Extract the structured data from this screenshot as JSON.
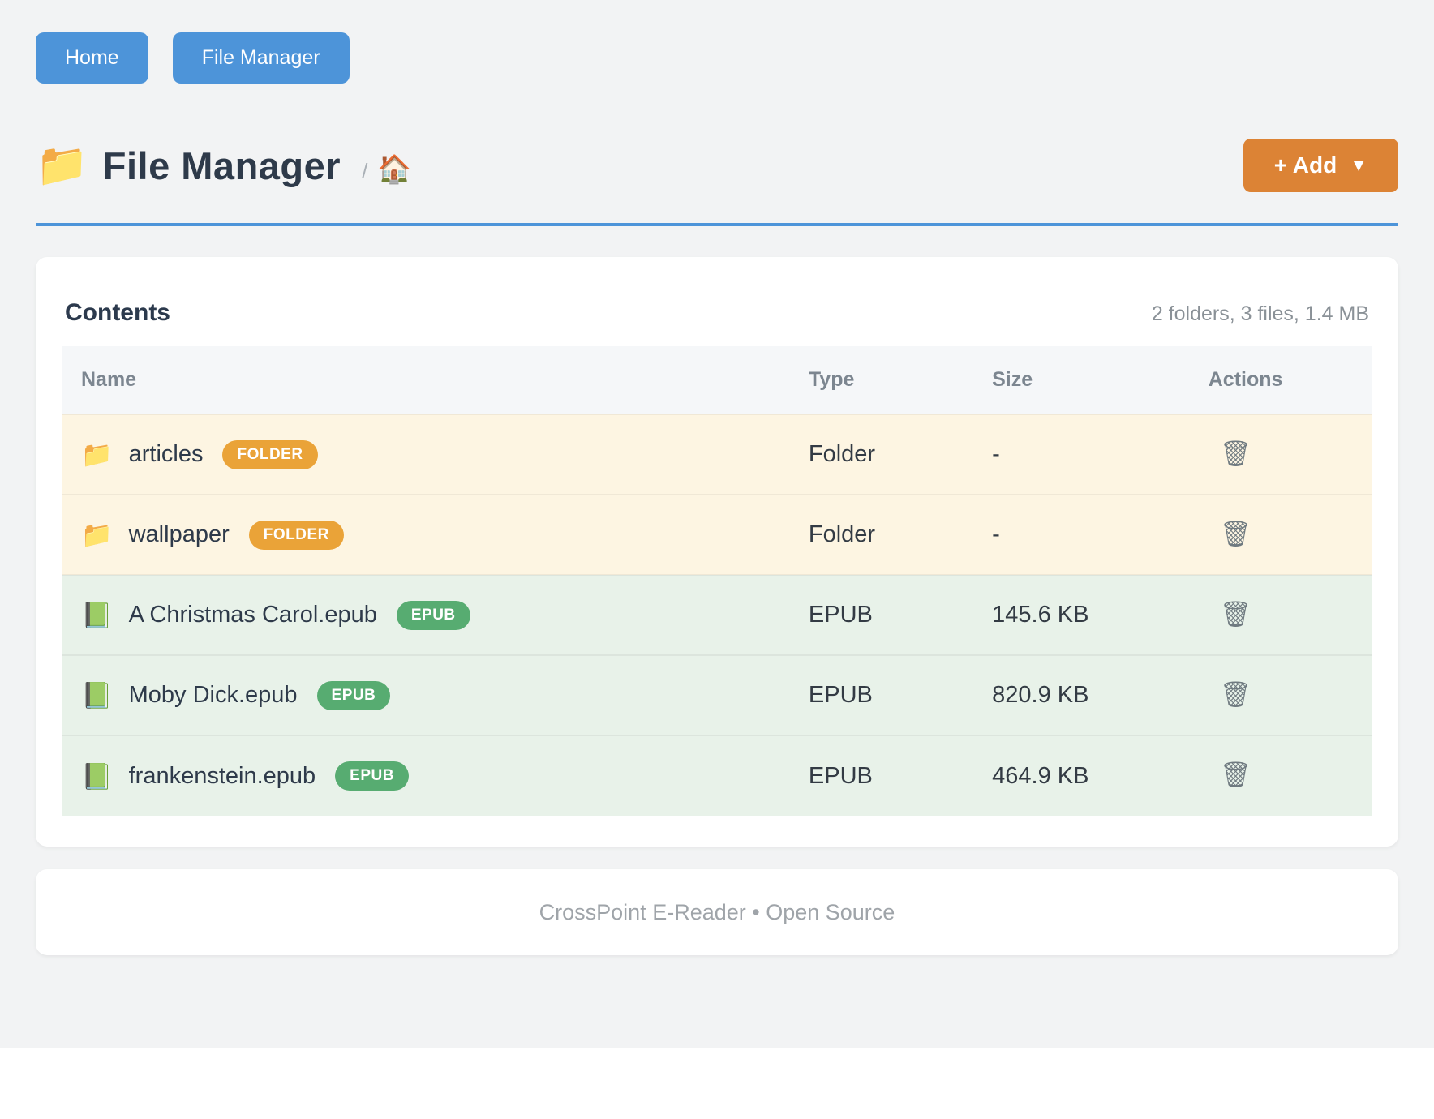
{
  "colors": {
    "accent_blue": "#4d94d9",
    "accent_orange": "#dc8335",
    "badge_orange": "#eaa338",
    "badge_green": "#57ac71",
    "folder_row_bg": "#fdf5e2",
    "epub_row_bg": "#e8f2e9"
  },
  "nav": {
    "home_label": "Home",
    "file_manager_label": "File Manager"
  },
  "header": {
    "folder_icon": "📁",
    "title": "File Manager",
    "breadcrumb_separator": "/",
    "home_icon": "🏠",
    "add_button_label": "+ Add",
    "add_button_caret": "▼"
  },
  "contents": {
    "title": "Contents",
    "summary": "2 folders, 3 files, 1.4 MB",
    "table": {
      "columns": {
        "name": "Name",
        "type": "Type",
        "size": "Size",
        "actions": "Actions"
      },
      "rows": [
        {
          "kind": "folder",
          "icon": "📁",
          "name": "articles",
          "badge": "FOLDER",
          "type": "Folder",
          "size": "-",
          "action_icon": "🗑"
        },
        {
          "kind": "folder",
          "icon": "📁",
          "name": "wallpaper",
          "badge": "FOLDER",
          "type": "Folder",
          "size": "-",
          "action_icon": "🗑"
        },
        {
          "kind": "epub",
          "icon": "📗",
          "name": "A Christmas Carol.epub",
          "badge": "EPUB",
          "type": "EPUB",
          "size": "145.6 KB",
          "action_icon": "🗑"
        },
        {
          "kind": "epub",
          "icon": "📗",
          "name": "Moby Dick.epub",
          "badge": "EPUB",
          "type": "EPUB",
          "size": "820.9 KB",
          "action_icon": "🗑"
        },
        {
          "kind": "epub",
          "icon": "📗",
          "name": "frankenstein.epub",
          "badge": "EPUB",
          "type": "EPUB",
          "size": "464.9 KB",
          "action_icon": "🗑"
        }
      ]
    }
  },
  "footer": {
    "text": "CrossPoint E-Reader • Open Source"
  }
}
